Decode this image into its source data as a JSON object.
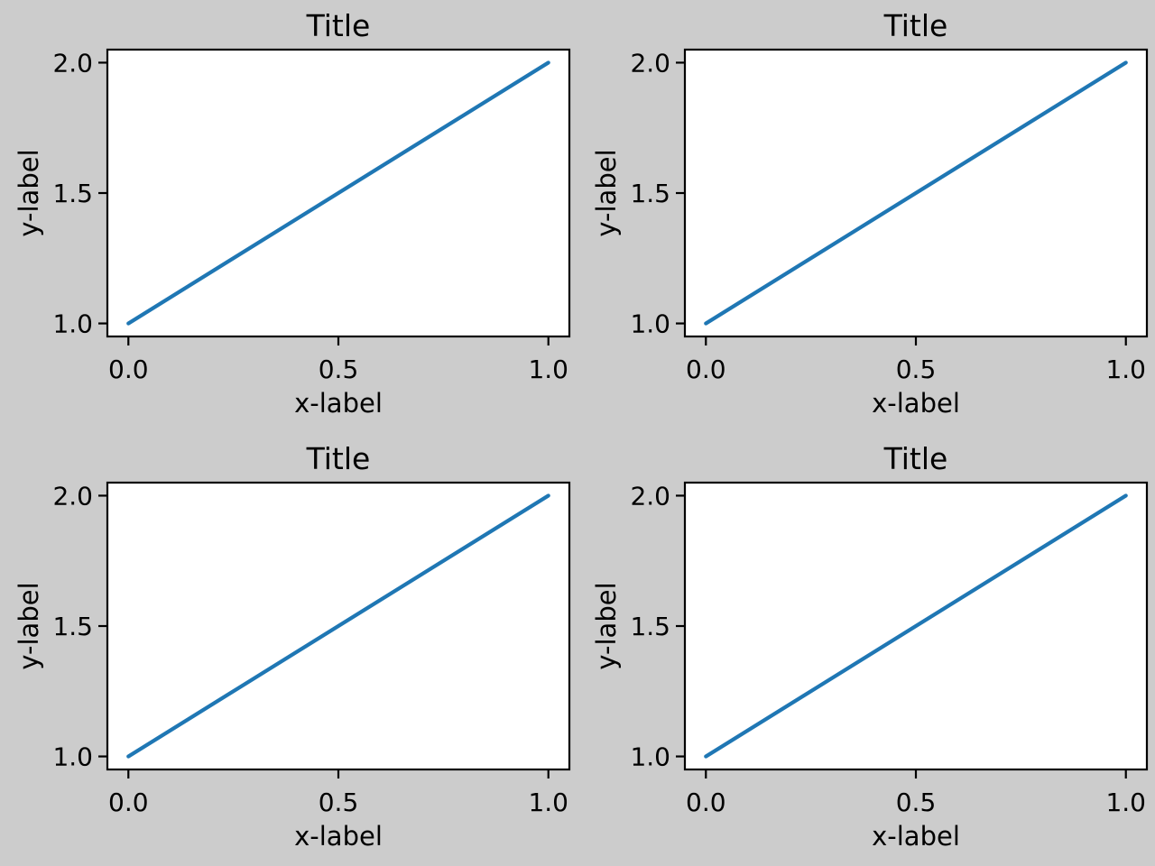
{
  "figure": {
    "background_color": "#cccccc",
    "axes_facecolor": "#ffffff",
    "spine_color": "#000000",
    "text_color": "#000000",
    "rows": 2,
    "cols": 2
  },
  "chart_data": [
    {
      "type": "line",
      "title": "Title",
      "xlabel": "x-label",
      "ylabel": "y-label",
      "x": [
        0.0,
        1.0
      ],
      "y": [
        1.0,
        2.0
      ],
      "xticks": [
        {
          "value": 0.0,
          "label": "0.0"
        },
        {
          "value": 0.5,
          "label": "0.5"
        },
        {
          "value": 1.0,
          "label": "1.0"
        }
      ],
      "yticks": [
        {
          "value": 1.0,
          "label": "1.0"
        },
        {
          "value": 1.5,
          "label": "1.5"
        },
        {
          "value": 2.0,
          "label": "2.0"
        }
      ],
      "xlim": [
        -0.05,
        1.05
      ],
      "ylim": [
        0.95,
        2.05
      ],
      "grid": false,
      "legend": null,
      "line_color": "#1f77b4"
    },
    {
      "type": "line",
      "title": "Title",
      "xlabel": "x-label",
      "ylabel": "y-label",
      "x": [
        0.0,
        1.0
      ],
      "y": [
        1.0,
        2.0
      ],
      "xticks": [
        {
          "value": 0.0,
          "label": "0.0"
        },
        {
          "value": 0.5,
          "label": "0.5"
        },
        {
          "value": 1.0,
          "label": "1.0"
        }
      ],
      "yticks": [
        {
          "value": 1.0,
          "label": "1.0"
        },
        {
          "value": 1.5,
          "label": "1.5"
        },
        {
          "value": 2.0,
          "label": "2.0"
        }
      ],
      "xlim": [
        -0.05,
        1.05
      ],
      "ylim": [
        0.95,
        2.05
      ],
      "grid": false,
      "legend": null,
      "line_color": "#1f77b4"
    },
    {
      "type": "line",
      "title": "Title",
      "xlabel": "x-label",
      "ylabel": "y-label",
      "x": [
        0.0,
        1.0
      ],
      "y": [
        1.0,
        2.0
      ],
      "xticks": [
        {
          "value": 0.0,
          "label": "0.0"
        },
        {
          "value": 0.5,
          "label": "0.5"
        },
        {
          "value": 1.0,
          "label": "1.0"
        }
      ],
      "yticks": [
        {
          "value": 1.0,
          "label": "1.0"
        },
        {
          "value": 1.5,
          "label": "1.5"
        },
        {
          "value": 2.0,
          "label": "2.0"
        }
      ],
      "xlim": [
        -0.05,
        1.05
      ],
      "ylim": [
        0.95,
        2.05
      ],
      "grid": false,
      "legend": null,
      "line_color": "#1f77b4"
    },
    {
      "type": "line",
      "title": "Title",
      "xlabel": "x-label",
      "ylabel": "y-label",
      "x": [
        0.0,
        1.0
      ],
      "y": [
        1.0,
        2.0
      ],
      "xticks": [
        {
          "value": 0.0,
          "label": "0.0"
        },
        {
          "value": 0.5,
          "label": "0.5"
        },
        {
          "value": 1.0,
          "label": "1.0"
        }
      ],
      "yticks": [
        {
          "value": 1.0,
          "label": "1.0"
        },
        {
          "value": 1.5,
          "label": "1.5"
        },
        {
          "value": 2.0,
          "label": "2.0"
        }
      ],
      "xlim": [
        -0.05,
        1.05
      ],
      "ylim": [
        0.95,
        2.05
      ],
      "grid": false,
      "legend": null,
      "line_color": "#1f77b4"
    }
  ]
}
